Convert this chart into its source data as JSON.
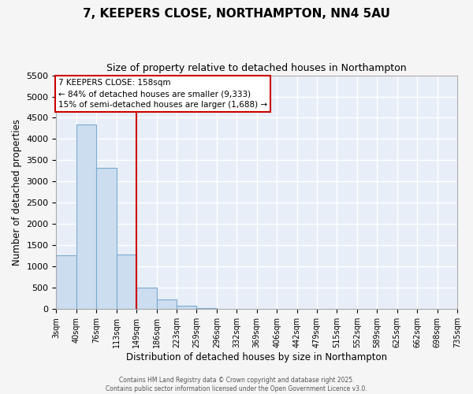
{
  "title": "7, KEEPERS CLOSE, NORTHAMPTON, NN4 5AU",
  "subtitle": "Size of property relative to detached houses in Northampton",
  "xlabel": "Distribution of detached houses by size in Northampton",
  "ylabel": "Number of detached properties",
  "bin_labels": [
    "3sqm",
    "40sqm",
    "76sqm",
    "113sqm",
    "149sqm",
    "186sqm",
    "223sqm",
    "259sqm",
    "296sqm",
    "332sqm",
    "369sqm",
    "406sqm",
    "442sqm",
    "479sqm",
    "515sqm",
    "552sqm",
    "589sqm",
    "625sqm",
    "662sqm",
    "698sqm",
    "735sqm"
  ],
  "bar_heights": [
    1270,
    4350,
    3320,
    1290,
    500,
    230,
    75,
    30,
    0,
    0,
    0,
    0,
    0,
    0,
    0,
    0,
    0,
    0,
    0,
    0
  ],
  "bar_color": "#ccddf0",
  "bar_edge_color": "#7aaad0",
  "vline_color": "#cc0000",
  "ylim": [
    0,
    5500
  ],
  "yticks": [
    0,
    500,
    1000,
    1500,
    2000,
    2500,
    3000,
    3500,
    4000,
    4500,
    5000,
    5500
  ],
  "annotation_title": "7 KEEPERS CLOSE: 158sqm",
  "annotation_line1": "← 84% of detached houses are smaller (9,333)",
  "annotation_line2": "15% of semi-detached houses are larger (1,688) →",
  "annotation_box_color": "#cc0000",
  "background_color": "#e8eef8",
  "grid_color": "#ffffff",
  "footer_line1": "Contains HM Land Registry data © Crown copyright and database right 2025.",
  "footer_line2": "Contains public sector information licensed under the Open Government Licence v3.0.",
  "fig_facecolor": "#f5f5f5"
}
